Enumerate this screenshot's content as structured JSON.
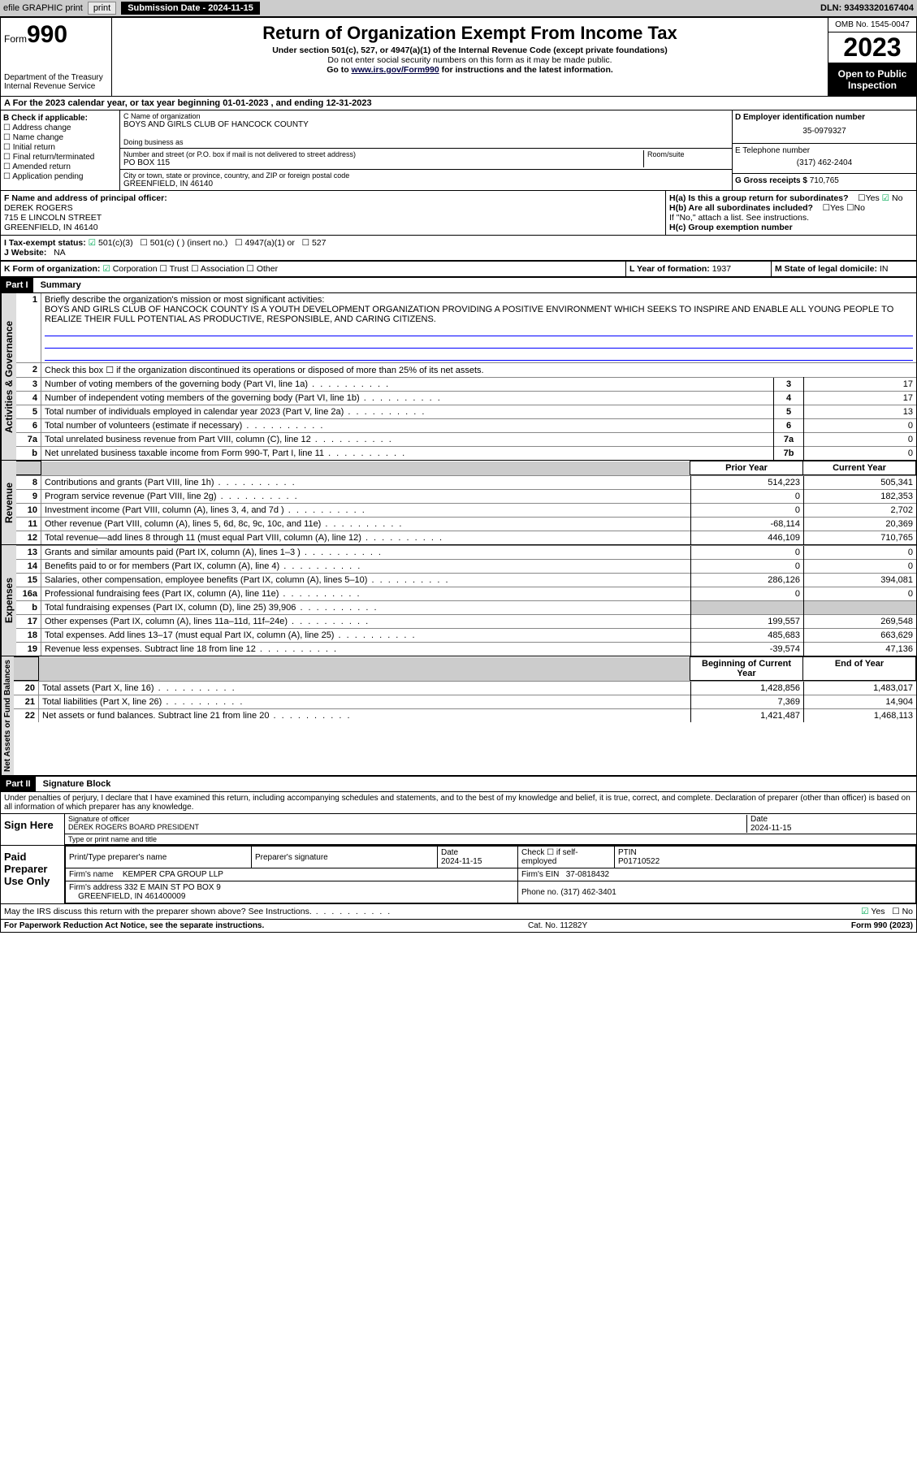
{
  "topbar": {
    "efile": "efile GRAPHIC print",
    "subdate_lbl": "Submission Date - 2024-11-15",
    "dln": "DLN: 93493320167404"
  },
  "header": {
    "form_small": "Form",
    "form_big": "990",
    "dept": "Department of the Treasury",
    "irs": "Internal Revenue Service",
    "title": "Return of Organization Exempt From Income Tax",
    "sub1": "Under section 501(c), 527, or 4947(a)(1) of the Internal Revenue Code (except private foundations)",
    "sub2": "Do not enter social security numbers on this form as it may be made public.",
    "sub3_pre": "Go to ",
    "sub3_link": "www.irs.gov/Form990",
    "sub3_post": " for instructions and the latest information.",
    "omb": "OMB No. 1545-0047",
    "year": "2023",
    "inspection": "Open to Public Inspection"
  },
  "row_a": "A For the 2023 calendar year, or tax year beginning 01-01-2023   , and ending 12-31-2023",
  "col_b": {
    "hdr": "B Check if applicable:",
    "items": [
      "Address change",
      "Name change",
      "Initial return",
      "Final return/terminated",
      "Amended return",
      "Application pending"
    ]
  },
  "col_c": {
    "name_lbl": "C Name of organization",
    "name": "BOYS AND GIRLS CLUB OF HANCOCK COUNTY",
    "dba_lbl": "Doing business as",
    "addr_lbl": "Number and street (or P.O. box if mail is not delivered to street address)",
    "room_lbl": "Room/suite",
    "addr": "PO BOX 115",
    "city_lbl": "City or town, state or province, country, and ZIP or foreign postal code",
    "city": "GREENFIELD, IN  46140"
  },
  "col_de": {
    "d_lbl": "D Employer identification number",
    "ein": "35-0979327",
    "e_lbl": "E Telephone number",
    "phone": "(317) 462-2404",
    "g_lbl": "G Gross receipts $ ",
    "gross": "710,765"
  },
  "row_f": {
    "lbl": "F Name and address of principal officer:",
    "name": "DEREK ROGERS",
    "addr1": "715 E LINCOLN STREET",
    "addr2": "GREENFIELD, IN  46140"
  },
  "row_h": {
    "ha": "H(a)  Is this a group return for subordinates?",
    "hb": "H(b)  Are all subordinates included?",
    "hb2": "If \"No,\" attach a list. See instructions.",
    "hc": "H(c)  Group exemption number"
  },
  "row_i": {
    "lbl": "I   Tax-exempt status:",
    "o1": "501(c)(3)",
    "o2": "501(c) (  ) (insert no.)",
    "o3": "4947(a)(1) or",
    "o4": "527"
  },
  "row_j": {
    "lbl": "J   Website:",
    "val": "NA"
  },
  "row_k": {
    "lbl": "K Form of organization:",
    "o1": "Corporation",
    "o2": "Trust",
    "o3": "Association",
    "o4": "Other"
  },
  "row_l": {
    "lbl": "L Year of formation: ",
    "val": "1937"
  },
  "row_m": {
    "lbl": "M State of legal domicile: ",
    "val": "IN"
  },
  "part1": {
    "hdr": "Part I",
    "title": "Summary"
  },
  "summary": {
    "governance_lbl": "Activities & Governance",
    "revenue_lbl": "Revenue",
    "expenses_lbl": "Expenses",
    "netassets_lbl": "Net Assets or Fund Balances",
    "q1": "Briefly describe the organization's mission or most significant activities:",
    "mission": "BOYS AND GIRLS CLUB OF HANCOCK COUNTY IS A YOUTH DEVELOPMENT ORGANIZATION PROVIDING A POSITIVE ENVIRONMENT WHICH SEEKS TO INSPIRE AND ENABLE ALL YOUNG PEOPLE TO REALIZE THEIR FULL POTENTIAL AS PRODUCTIVE, RESPONSIBLE, AND CARING CITIZENS.",
    "q2": "Check this box ☐ if the organization discontinued its operations or disposed of more than 25% of its net assets.",
    "rows_gov": [
      {
        "n": "3",
        "t": "Number of voting members of the governing body (Part VI, line 1a)",
        "ln": "3",
        "v": "17"
      },
      {
        "n": "4",
        "t": "Number of independent voting members of the governing body (Part VI, line 1b)",
        "ln": "4",
        "v": "17"
      },
      {
        "n": "5",
        "t": "Total number of individuals employed in calendar year 2023 (Part V, line 2a)",
        "ln": "5",
        "v": "13"
      },
      {
        "n": "6",
        "t": "Total number of volunteers (estimate if necessary)",
        "ln": "6",
        "v": "0"
      },
      {
        "n": "7a",
        "t": "Total unrelated business revenue from Part VIII, column (C), line 12",
        "ln": "7a",
        "v": "0"
      },
      {
        "n": "b",
        "t": "Net unrelated business taxable income from Form 990-T, Part I, line 11",
        "ln": "7b",
        "v": "0"
      }
    ],
    "py_hdr": "Prior Year",
    "cy_hdr": "Current Year",
    "rows_rev": [
      {
        "n": "8",
        "t": "Contributions and grants (Part VIII, line 1h)",
        "py": "514,223",
        "cy": "505,341"
      },
      {
        "n": "9",
        "t": "Program service revenue (Part VIII, line 2g)",
        "py": "0",
        "cy": "182,353"
      },
      {
        "n": "10",
        "t": "Investment income (Part VIII, column (A), lines 3, 4, and 7d )",
        "py": "0",
        "cy": "2,702"
      },
      {
        "n": "11",
        "t": "Other revenue (Part VIII, column (A), lines 5, 6d, 8c, 9c, 10c, and 11e)",
        "py": "-68,114",
        "cy": "20,369"
      },
      {
        "n": "12",
        "t": "Total revenue—add lines 8 through 11 (must equal Part VIII, column (A), line 12)",
        "py": "446,109",
        "cy": "710,765"
      }
    ],
    "rows_exp": [
      {
        "n": "13",
        "t": "Grants and similar amounts paid (Part IX, column (A), lines 1–3 )",
        "py": "0",
        "cy": "0"
      },
      {
        "n": "14",
        "t": "Benefits paid to or for members (Part IX, column (A), line 4)",
        "py": "0",
        "cy": "0"
      },
      {
        "n": "15",
        "t": "Salaries, other compensation, employee benefits (Part IX, column (A), lines 5–10)",
        "py": "286,126",
        "cy": "394,081"
      },
      {
        "n": "16a",
        "t": "Professional fundraising fees (Part IX, column (A), line 11e)",
        "py": "0",
        "cy": "0"
      },
      {
        "n": "b",
        "t": "Total fundraising expenses (Part IX, column (D), line 25) 39,906",
        "py": "",
        "cy": "",
        "grey": true
      },
      {
        "n": "17",
        "t": "Other expenses (Part IX, column (A), lines 11a–11d, 11f–24e)",
        "py": "199,557",
        "cy": "269,548"
      },
      {
        "n": "18",
        "t": "Total expenses. Add lines 13–17 (must equal Part IX, column (A), line 25)",
        "py": "485,683",
        "cy": "663,629"
      },
      {
        "n": "19",
        "t": "Revenue less expenses. Subtract line 18 from line 12",
        "py": "-39,574",
        "cy": "47,136"
      }
    ],
    "boy_hdr": "Beginning of Current Year",
    "eoy_hdr": "End of Year",
    "rows_net": [
      {
        "n": "20",
        "t": "Total assets (Part X, line 16)",
        "py": "1,428,856",
        "cy": "1,483,017"
      },
      {
        "n": "21",
        "t": "Total liabilities (Part X, line 26)",
        "py": "7,369",
        "cy": "14,904"
      },
      {
        "n": "22",
        "t": "Net assets or fund balances. Subtract line 21 from line 20",
        "py": "1,421,487",
        "cy": "1,468,113"
      }
    ]
  },
  "part2": {
    "hdr": "Part II",
    "title": "Signature Block"
  },
  "sig": {
    "perjury": "Under penalties of perjury, I declare that I have examined this return, including accompanying schedules and statements, and to the best of my knowledge and belief, it is true, correct, and complete. Declaration of preparer (other than officer) is based on all information of which preparer has any knowledge.",
    "sign_here": "Sign Here",
    "sig_officer_lbl": "Signature of officer",
    "date_lbl": "Date",
    "date": "2024-11-15",
    "officer": "DEREK ROGERS BOARD PRESIDENT",
    "type_lbl": "Type or print name and title",
    "paid": "Paid Preparer Use Only",
    "prep_name_lbl": "Print/Type preparer's name",
    "prep_sig_lbl": "Preparer's signature",
    "prep_date_lbl": "Date",
    "prep_date": "2024-11-15",
    "self_emp": "Check ☐ if self-employed",
    "ptin_lbl": "PTIN",
    "ptin": "P01710522",
    "firm_name_lbl": "Firm's name",
    "firm_name": "KEMPER CPA GROUP LLP",
    "firm_ein_lbl": "Firm's EIN",
    "firm_ein": "37-0818432",
    "firm_addr_lbl": "Firm's address",
    "firm_addr": "332 E MAIN ST PO BOX 9",
    "firm_city": "GREENFIELD, IN  461400009",
    "firm_phone_lbl": "Phone no.",
    "firm_phone": "(317) 462-3401",
    "discuss": "May the IRS discuss this return with the preparer shown above? See Instructions.",
    "yes": "Yes",
    "no": "No"
  },
  "footer": {
    "l": "For Paperwork Reduction Act Notice, see the separate instructions.",
    "c": "Cat. No. 11282Y",
    "r": "Form 990 (2023)"
  }
}
